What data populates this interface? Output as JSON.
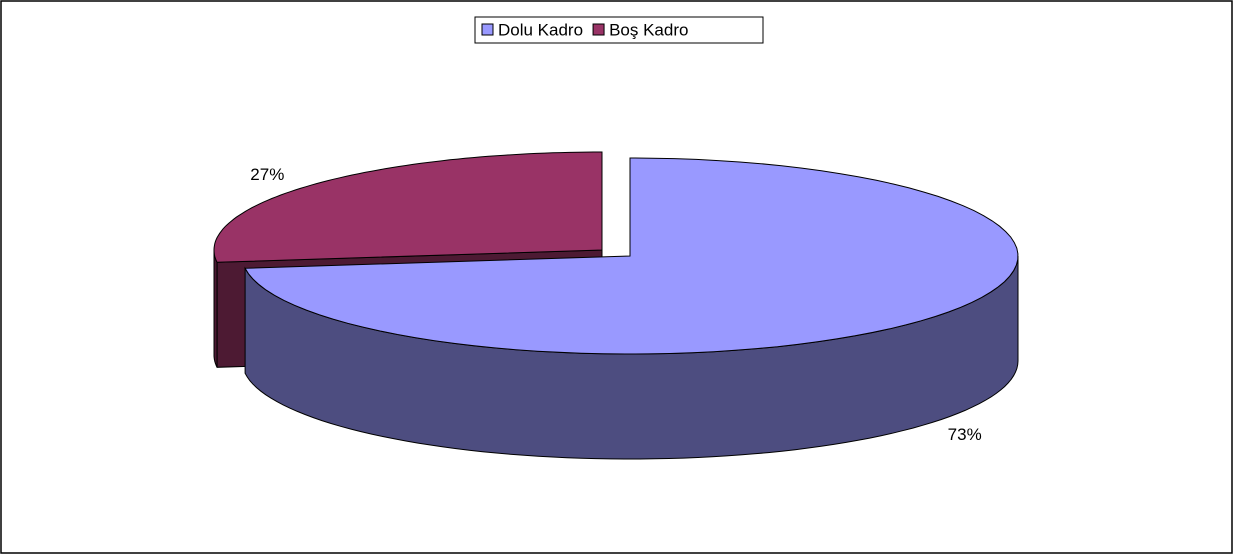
{
  "chart_data": {
    "type": "pie3d",
    "series": [
      {
        "name": "Dolu Kadro",
        "color": "#9999ff",
        "values": [
          73
        ],
        "value_labels": [
          "73%"
        ]
      },
      {
        "name": "Boş Kadro",
        "color": "#993366",
        "values": [
          27
        ],
        "value_labels": [
          "27%"
        ]
      }
    ],
    "legend": "top"
  }
}
